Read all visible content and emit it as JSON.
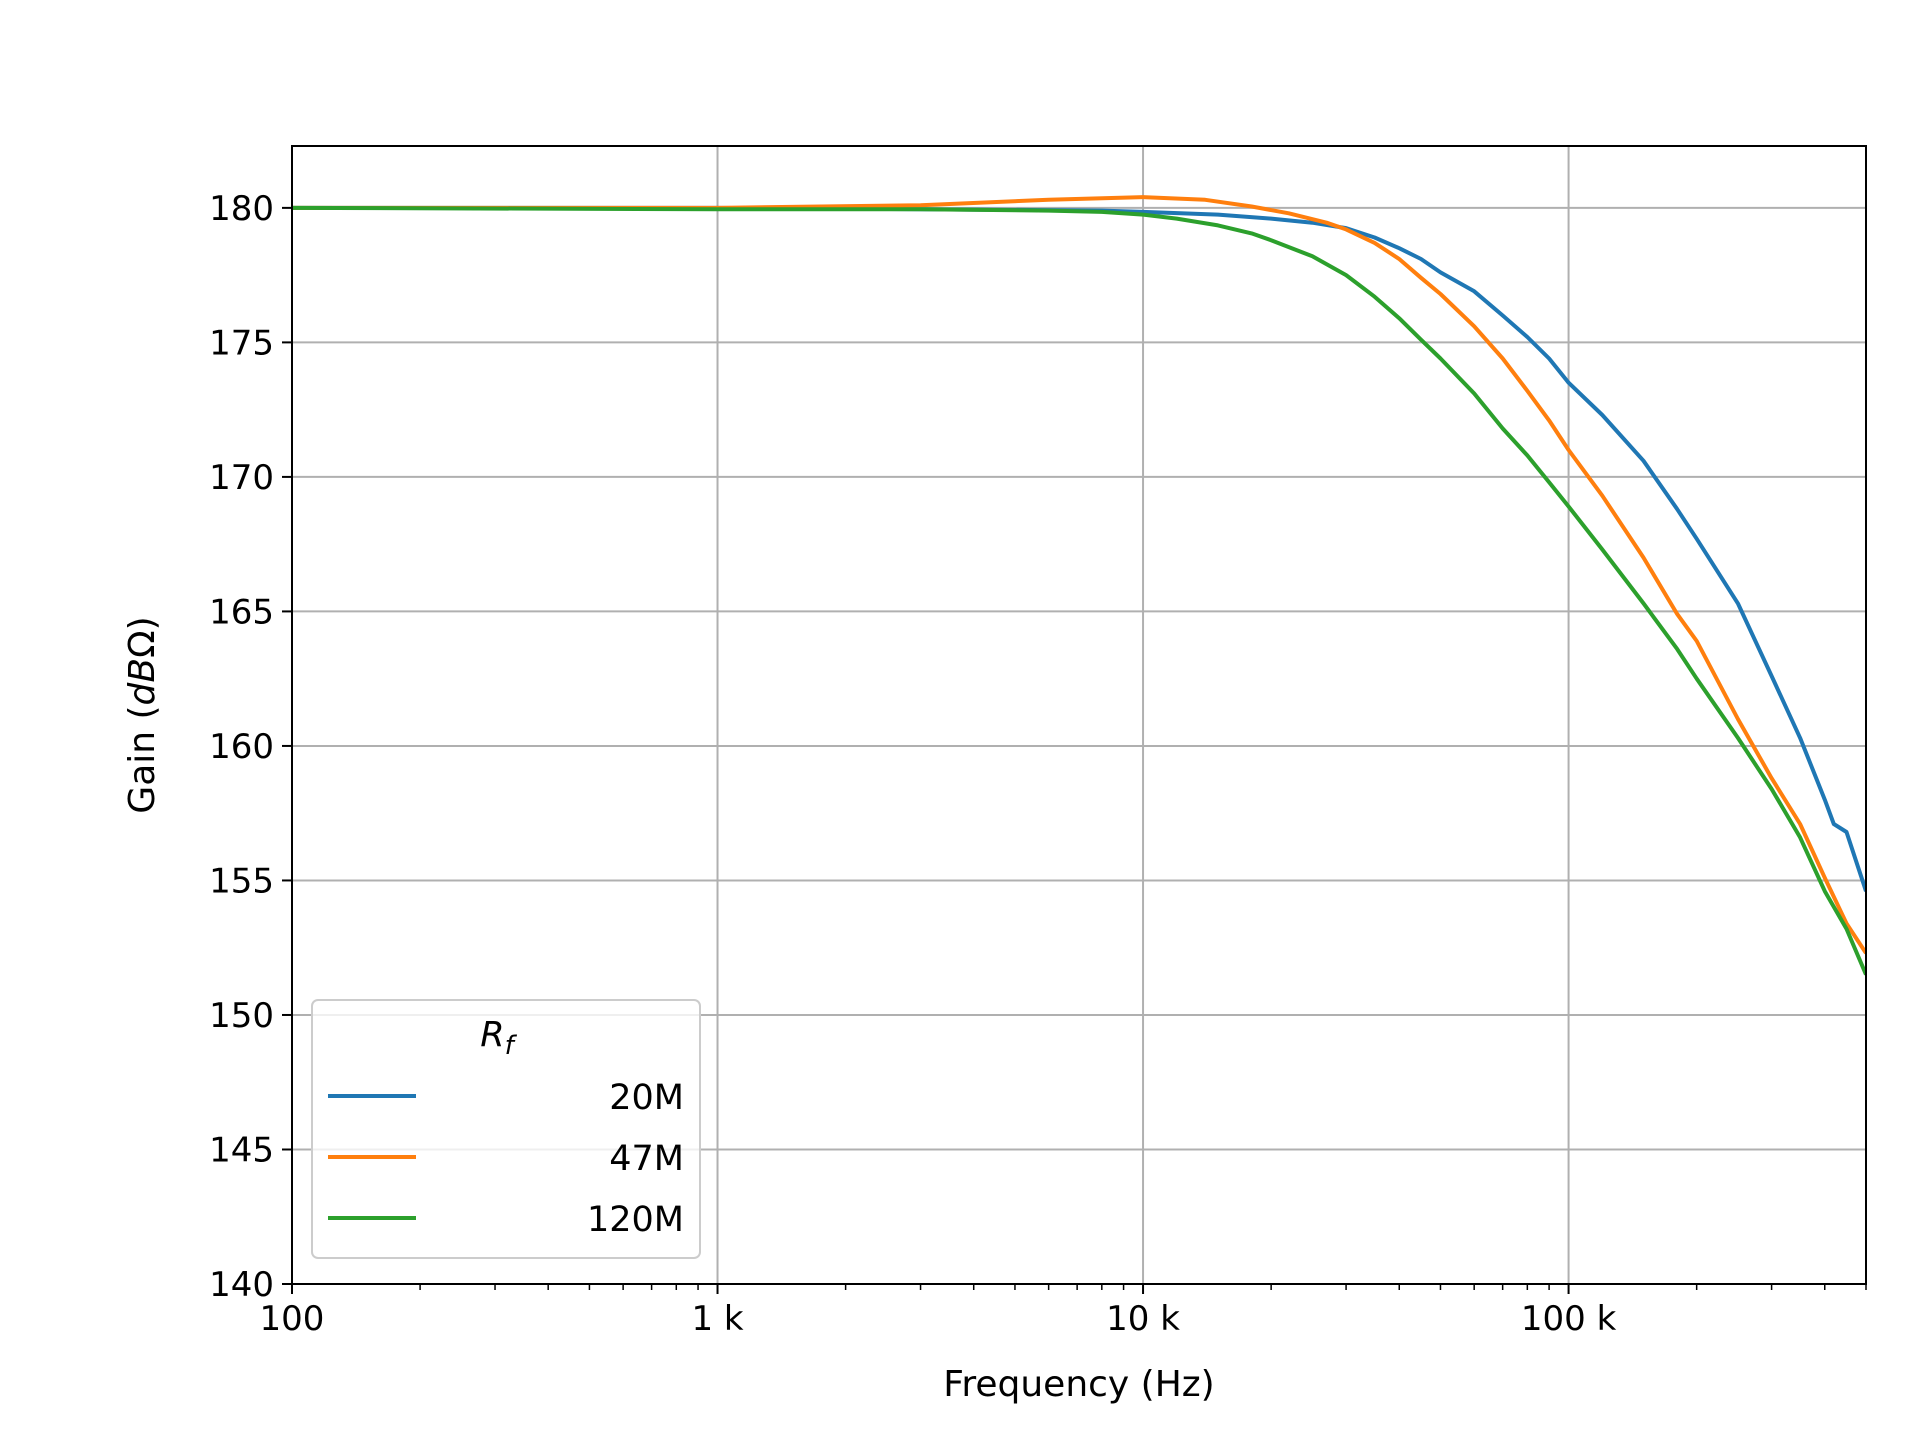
{
  "chart_data": {
    "type": "line",
    "title": "",
    "xlabel": "Frequency (Hz)",
    "ylabel": "Gain (dBΩ)",
    "xscale": "log",
    "xlim": [
      100,
      500000
    ],
    "ylim": [
      140,
      182.3
    ],
    "x_ticks": [
      100,
      1000,
      10000,
      100000
    ],
    "x_tick_labels": [
      "100",
      "1 k",
      "10 k",
      "100 k"
    ],
    "y_ticks": [
      140,
      145,
      150,
      155,
      160,
      165,
      170,
      175,
      180
    ],
    "y_tick_labels": [
      "140",
      "145",
      "150",
      "155",
      "160",
      "165",
      "170",
      "175",
      "180"
    ],
    "grid": true,
    "legend": {
      "title": "Rf",
      "placement": "lower-left"
    },
    "series": [
      {
        "name": "20M",
        "color": "#1f77b4",
        "points": [
          [
            100,
            180
          ],
          [
            1000,
            180
          ],
          [
            3000,
            179.95
          ],
          [
            8000,
            179.9
          ],
          [
            10000,
            179.85
          ],
          [
            15000,
            179.75
          ],
          [
            20000,
            179.6
          ],
          [
            25000,
            179.45
          ],
          [
            30000,
            179.25
          ],
          [
            35000,
            178.9
          ],
          [
            40000,
            178.5
          ],
          [
            45000,
            178.1
          ],
          [
            50000,
            177.6
          ],
          [
            60000,
            176.9
          ],
          [
            70000,
            176.0
          ],
          [
            80000,
            175.2
          ],
          [
            90000,
            174.4
          ],
          [
            100000,
            173.5
          ],
          [
            120000,
            172.3
          ],
          [
            150000,
            170.6
          ],
          [
            180000,
            168.8
          ],
          [
            200000,
            167.7
          ],
          [
            250000,
            165.3
          ],
          [
            300000,
            162.6
          ],
          [
            350000,
            160.3
          ],
          [
            400000,
            158.0
          ],
          [
            420000,
            157.1
          ],
          [
            450000,
            156.8
          ],
          [
            500000,
            154.6
          ]
        ]
      },
      {
        "name": "47M",
        "color": "#ff7f0e",
        "points": [
          [
            100,
            180
          ],
          [
            1000,
            180
          ],
          [
            3000,
            180.1
          ],
          [
            6000,
            180.3
          ],
          [
            10000,
            180.4
          ],
          [
            14000,
            180.3
          ],
          [
            18000,
            180.05
          ],
          [
            22000,
            179.8
          ],
          [
            27000,
            179.45
          ],
          [
            30000,
            179.2
          ],
          [
            35000,
            178.7
          ],
          [
            40000,
            178.1
          ],
          [
            45000,
            177.4
          ],
          [
            50000,
            176.8
          ],
          [
            60000,
            175.6
          ],
          [
            70000,
            174.4
          ],
          [
            80000,
            173.2
          ],
          [
            90000,
            172.1
          ],
          [
            100000,
            171.0
          ],
          [
            120000,
            169.3
          ],
          [
            150000,
            167.0
          ],
          [
            180000,
            164.9
          ],
          [
            200000,
            163.9
          ],
          [
            250000,
            161.0
          ],
          [
            300000,
            158.8
          ],
          [
            350000,
            157.1
          ],
          [
            400000,
            155.1
          ],
          [
            450000,
            153.4
          ],
          [
            500000,
            152.3
          ]
        ]
      },
      {
        "name": "120M",
        "color": "#2ca02c",
        "points": [
          [
            100,
            180
          ],
          [
            1000,
            179.95
          ],
          [
            3000,
            179.95
          ],
          [
            6000,
            179.9
          ],
          [
            8000,
            179.85
          ],
          [
            10000,
            179.75
          ],
          [
            12000,
            179.6
          ],
          [
            15000,
            179.35
          ],
          [
            18000,
            179.05
          ],
          [
            20000,
            178.8
          ],
          [
            25000,
            178.2
          ],
          [
            30000,
            177.5
          ],
          [
            35000,
            176.7
          ],
          [
            40000,
            175.9
          ],
          [
            45000,
            175.1
          ],
          [
            50000,
            174.4
          ],
          [
            60000,
            173.1
          ],
          [
            70000,
            171.8
          ],
          [
            80000,
            170.8
          ],
          [
            90000,
            169.8
          ],
          [
            100000,
            168.9
          ],
          [
            120000,
            167.3
          ],
          [
            150000,
            165.3
          ],
          [
            180000,
            163.6
          ],
          [
            200000,
            162.5
          ],
          [
            250000,
            160.3
          ],
          [
            300000,
            158.4
          ],
          [
            350000,
            156.6
          ],
          [
            400000,
            154.6
          ],
          [
            450000,
            153.2
          ],
          [
            500000,
            151.5
          ]
        ]
      }
    ]
  }
}
